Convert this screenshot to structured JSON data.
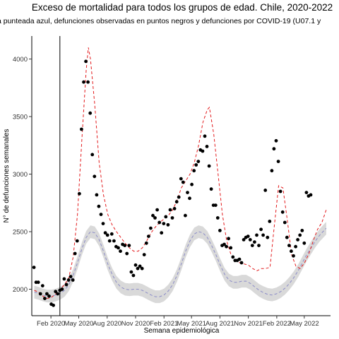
{
  "chart_data": {
    "type": "line",
    "title": "Exceso de mortalidad para todos los grupos de edad. Chile, 2020-2022",
    "subtitle": "a punteada azul, defunciones observadas en puntos negros y defunciones por COVID-19 (U07.1 y",
    "xlabel": "Semana epidemiológica",
    "ylabel": "N° de defunciones semanales",
    "xlim": [
      "2019-12-01",
      "2022-07-25"
    ],
    "ylim": [
      1770,
      4200
    ],
    "x_ticks": [
      {
        "date": "2020-02-01",
        "label": "Feb 2020"
      },
      {
        "date": "2020-05-01",
        "label": "May 2020"
      },
      {
        "date": "2020-08-01",
        "label": "Aug 2020"
      },
      {
        "date": "2020-11-01",
        "label": "Nov 2020"
      },
      {
        "date": "2021-02-01",
        "label": "Feb 2021"
      },
      {
        "date": "2021-05-01",
        "label": "May 2021"
      },
      {
        "date": "2021-08-01",
        "label": "Aug 2021"
      },
      {
        "date": "2021-11-01",
        "label": "Nov 2021"
      },
      {
        "date": "2022-02-01",
        "label": "Feb 2022"
      },
      {
        "date": "2022-05-01",
        "label": "May 2022"
      }
    ],
    "y_ticks": [
      2000,
      2500,
      3000,
      3500,
      4000
    ],
    "vertical_line_date": "2020-03-01",
    "grid": false,
    "series": [
      {
        "style": "dashed-red",
        "color": "#e31a1c",
        "points": [
          [
            "2019-12-09",
            1990
          ],
          [
            "2019-12-23",
            1975
          ],
          [
            "2020-01-06",
            1940
          ],
          [
            "2020-01-20",
            1920
          ],
          [
            "2020-02-03",
            1930
          ],
          [
            "2020-02-17",
            1960
          ],
          [
            "2020-03-02",
            2000
          ],
          [
            "2020-03-16",
            2040
          ],
          [
            "2020-03-30",
            2100
          ],
          [
            "2020-04-13",
            2280
          ],
          [
            "2020-04-27",
            2650
          ],
          [
            "2020-05-11",
            3300
          ],
          [
            "2020-05-25",
            3900
          ],
          [
            "2020-06-01",
            4100
          ],
          [
            "2020-06-08",
            4000
          ],
          [
            "2020-06-22",
            3600
          ],
          [
            "2020-07-06",
            3100
          ],
          [
            "2020-07-20",
            2820
          ],
          [
            "2020-08-03",
            2650
          ],
          [
            "2020-08-17",
            2560
          ],
          [
            "2020-08-31",
            2500
          ],
          [
            "2020-09-14",
            2450
          ],
          [
            "2020-09-28",
            2400
          ],
          [
            "2020-10-12",
            2360
          ],
          [
            "2020-10-26",
            2330
          ],
          [
            "2020-11-09",
            2330
          ],
          [
            "2020-11-23",
            2360
          ],
          [
            "2020-12-07",
            2420
          ],
          [
            "2020-12-21",
            2490
          ],
          [
            "2021-01-04",
            2540
          ],
          [
            "2021-01-18",
            2580
          ],
          [
            "2021-02-01",
            2610
          ],
          [
            "2021-02-15",
            2640
          ],
          [
            "2021-03-01",
            2690
          ],
          [
            "2021-03-15",
            2770
          ],
          [
            "2021-03-29",
            2880
          ],
          [
            "2021-04-12",
            2940
          ],
          [
            "2021-04-26",
            3000
          ],
          [
            "2021-05-10",
            3100
          ],
          [
            "2021-05-24",
            3250
          ],
          [
            "2021-06-07",
            3450
          ],
          [
            "2021-06-21",
            3560
          ],
          [
            "2021-06-28",
            3580
          ],
          [
            "2021-07-12",
            3350
          ],
          [
            "2021-07-26",
            3000
          ],
          [
            "2021-08-09",
            2650
          ],
          [
            "2021-08-23",
            2420
          ],
          [
            "2021-09-06",
            2300
          ],
          [
            "2021-09-20",
            2250
          ],
          [
            "2021-10-04",
            2230
          ],
          [
            "2021-10-18",
            2220
          ],
          [
            "2021-11-01",
            2210
          ],
          [
            "2021-11-15",
            2180
          ],
          [
            "2021-11-29",
            2160
          ],
          [
            "2021-12-13",
            2180
          ],
          [
            "2021-12-27",
            2180
          ],
          [
            "2022-01-10",
            2190
          ],
          [
            "2022-01-24",
            2550
          ],
          [
            "2022-02-07",
            2900
          ],
          [
            "2022-02-21",
            2880
          ],
          [
            "2022-03-07",
            2600
          ],
          [
            "2022-03-21",
            2300
          ],
          [
            "2022-04-04",
            2200
          ],
          [
            "2022-04-18",
            2180
          ],
          [
            "2022-05-02",
            2230
          ],
          [
            "2022-05-16",
            2310
          ],
          [
            "2022-05-30",
            2420
          ],
          [
            "2022-06-13",
            2520
          ],
          [
            "2022-06-27",
            2580
          ],
          [
            "2022-07-11",
            2690
          ]
        ]
      },
      {
        "style": "dashed-blue-with-band",
        "color": "#8c8cc8",
        "band_color": "#d9d9d9",
        "points": [
          [
            "2019-12-09",
            1975
          ],
          [
            "2019-12-23",
            1965
          ],
          [
            "2020-01-06",
            1950
          ],
          [
            "2020-01-20",
            1940
          ],
          [
            "2020-02-03",
            1940
          ],
          [
            "2020-02-17",
            1950
          ],
          [
            "2020-03-02",
            1965
          ],
          [
            "2020-03-16",
            1990
          ],
          [
            "2020-03-30",
            2040
          ],
          [
            "2020-04-13",
            2120
          ],
          [
            "2020-04-27",
            2230
          ],
          [
            "2020-05-11",
            2350
          ],
          [
            "2020-05-25",
            2450
          ],
          [
            "2020-06-08",
            2500
          ],
          [
            "2020-06-22",
            2490
          ],
          [
            "2020-07-06",
            2430
          ],
          [
            "2020-07-20",
            2330
          ],
          [
            "2020-08-03",
            2220
          ],
          [
            "2020-08-17",
            2130
          ],
          [
            "2020-08-31",
            2060
          ],
          [
            "2020-09-14",
            2020
          ],
          [
            "2020-09-28",
            2000
          ],
          [
            "2020-10-12",
            1995
          ],
          [
            "2020-10-26",
            2000
          ],
          [
            "2020-11-09",
            2000
          ],
          [
            "2020-11-23",
            1990
          ],
          [
            "2020-12-07",
            1970
          ],
          [
            "2020-12-21",
            1950
          ],
          [
            "2021-01-04",
            1935
          ],
          [
            "2021-01-18",
            1935
          ],
          [
            "2021-02-01",
            1950
          ],
          [
            "2021-02-15",
            1985
          ],
          [
            "2021-03-01",
            2040
          ],
          [
            "2021-03-15",
            2120
          ],
          [
            "2021-03-29",
            2220
          ],
          [
            "2021-04-12",
            2330
          ],
          [
            "2021-04-26",
            2420
          ],
          [
            "2021-05-10",
            2480
          ],
          [
            "2021-05-24",
            2500
          ],
          [
            "2021-06-07",
            2490
          ],
          [
            "2021-06-21",
            2450
          ],
          [
            "2021-07-05",
            2380
          ],
          [
            "2021-07-19",
            2300
          ],
          [
            "2021-08-02",
            2210
          ],
          [
            "2021-08-16",
            2130
          ],
          [
            "2021-08-30",
            2080
          ],
          [
            "2021-09-13",
            2060
          ],
          [
            "2021-09-27",
            2060
          ],
          [
            "2021-10-11",
            2070
          ],
          [
            "2021-10-25",
            2070
          ],
          [
            "2021-11-08",
            2050
          ],
          [
            "2021-11-22",
            2020
          ],
          [
            "2021-12-06",
            1990
          ],
          [
            "2021-12-20",
            1970
          ],
          [
            "2022-01-03",
            1955
          ],
          [
            "2022-01-17",
            1950
          ],
          [
            "2022-01-31",
            1960
          ],
          [
            "2022-02-14",
            1980
          ],
          [
            "2022-02-28",
            2010
          ],
          [
            "2022-03-14",
            2050
          ],
          [
            "2022-03-28",
            2100
          ],
          [
            "2022-04-11",
            2160
          ],
          [
            "2022-04-25",
            2230
          ],
          [
            "2022-05-09",
            2300
          ],
          [
            "2022-05-23",
            2360
          ],
          [
            "2022-06-06",
            2420
          ],
          [
            "2022-06-20",
            2470
          ],
          [
            "2022-07-04",
            2510
          ],
          [
            "2022-07-11",
            2530
          ]
        ],
        "band_half_width": 55
      },
      {
        "style": "points-black",
        "color": "#000000",
        "points": [
          [
            "2019-12-08",
            2190
          ],
          [
            "2019-12-15",
            2060
          ],
          [
            "2019-12-22",
            2060
          ],
          [
            "2019-12-29",
            1960
          ],
          [
            "2020-01-05",
            2030
          ],
          [
            "2020-01-12",
            1920
          ],
          [
            "2020-01-19",
            1960
          ],
          [
            "2020-01-26",
            1940
          ],
          [
            "2020-02-02",
            1870
          ],
          [
            "2020-02-09",
            1860
          ],
          [
            "2020-02-16",
            1980
          ],
          [
            "2020-02-23",
            1960
          ],
          [
            "2020-03-01",
            1990
          ],
          [
            "2020-03-08",
            2000
          ],
          [
            "2020-03-15",
            2090
          ],
          [
            "2020-03-22",
            2040
          ],
          [
            "2020-03-29",
            2080
          ],
          [
            "2020-04-05",
            2110
          ],
          [
            "2020-04-12",
            2080
          ],
          [
            "2020-04-19",
            2310
          ],
          [
            "2020-04-26",
            2420
          ],
          [
            "2020-05-03",
            2830
          ],
          [
            "2020-05-10",
            3390
          ],
          [
            "2020-05-17",
            3800
          ],
          [
            "2020-05-24",
            3980
          ],
          [
            "2020-05-31",
            3800
          ],
          [
            "2020-06-07",
            3530
          ],
          [
            "2020-06-14",
            3170
          ],
          [
            "2020-06-21",
            2980
          ],
          [
            "2020-06-28",
            2820
          ],
          [
            "2020-07-05",
            2720
          ],
          [
            "2020-07-12",
            2650
          ],
          [
            "2020-07-19",
            2570
          ],
          [
            "2020-07-26",
            2490
          ],
          [
            "2020-08-02",
            2470
          ],
          [
            "2020-08-09",
            2420
          ],
          [
            "2020-08-16",
            2480
          ],
          [
            "2020-08-23",
            2420
          ],
          [
            "2020-08-30",
            2370
          ],
          [
            "2020-09-06",
            2360
          ],
          [
            "2020-09-13",
            2330
          ],
          [
            "2020-09-20",
            2390
          ],
          [
            "2020-09-27",
            2380
          ],
          [
            "2020-10-04",
            2310
          ],
          [
            "2020-10-11",
            2380
          ],
          [
            "2020-10-18",
            2150
          ],
          [
            "2020-10-25",
            2120
          ],
          [
            "2020-11-01",
            2210
          ],
          [
            "2020-11-08",
            2180
          ],
          [
            "2020-11-15",
            2200
          ],
          [
            "2020-11-22",
            2180
          ],
          [
            "2020-11-29",
            2300
          ],
          [
            "2020-12-06",
            2400
          ],
          [
            "2020-12-13",
            2460
          ],
          [
            "2020-12-20",
            2530
          ],
          [
            "2020-12-27",
            2640
          ],
          [
            "2021-01-03",
            2620
          ],
          [
            "2021-01-10",
            2690
          ],
          [
            "2021-01-17",
            2580
          ],
          [
            "2021-01-24",
            2490
          ],
          [
            "2021-01-31",
            2570
          ],
          [
            "2021-02-07",
            2630
          ],
          [
            "2021-02-14",
            2560
          ],
          [
            "2021-02-21",
            2690
          ],
          [
            "2021-02-28",
            2620
          ],
          [
            "2021-03-07",
            2700
          ],
          [
            "2021-03-14",
            2760
          ],
          [
            "2021-03-21",
            2800
          ],
          [
            "2021-03-28",
            2960
          ],
          [
            "2021-04-04",
            2930
          ],
          [
            "2021-04-11",
            2640
          ],
          [
            "2021-04-18",
            2840
          ],
          [
            "2021-04-25",
            2790
          ],
          [
            "2021-05-02",
            2910
          ],
          [
            "2021-05-09",
            3030
          ],
          [
            "2021-05-16",
            3080
          ],
          [
            "2021-05-23",
            3110
          ],
          [
            "2021-05-30",
            3210
          ],
          [
            "2021-06-06",
            3200
          ],
          [
            "2021-06-13",
            3330
          ],
          [
            "2021-06-20",
            3240
          ],
          [
            "2021-06-27",
            3070
          ],
          [
            "2021-07-04",
            2870
          ],
          [
            "2021-07-11",
            2730
          ],
          [
            "2021-07-18",
            2730
          ],
          [
            "2021-07-25",
            2620
          ],
          [
            "2021-08-01",
            2510
          ],
          [
            "2021-08-08",
            2380
          ],
          [
            "2021-08-15",
            2390
          ],
          [
            "2021-08-22",
            2370
          ],
          [
            "2021-08-29",
            2440
          ],
          [
            "2021-09-05",
            2360
          ],
          [
            "2021-09-12",
            2280
          ],
          [
            "2021-09-19",
            2250
          ],
          [
            "2021-09-26",
            2250
          ],
          [
            "2021-10-03",
            2260
          ],
          [
            "2021-10-10",
            2230
          ],
          [
            "2021-10-17",
            2430
          ],
          [
            "2021-10-24",
            2450
          ],
          [
            "2021-10-31",
            2460
          ],
          [
            "2021-11-07",
            2430
          ],
          [
            "2021-11-14",
            2380
          ],
          [
            "2021-11-21",
            2410
          ],
          [
            "2021-11-28",
            2470
          ],
          [
            "2021-12-05",
            2380
          ],
          [
            "2021-12-12",
            2520
          ],
          [
            "2021-12-19",
            2470
          ],
          [
            "2021-12-26",
            2860
          ],
          [
            "2022-01-02",
            2450
          ],
          [
            "2022-01-09",
            2590
          ],
          [
            "2022-01-16",
            3030
          ],
          [
            "2022-01-23",
            3220
          ],
          [
            "2022-01-30",
            3290
          ],
          [
            "2022-02-06",
            3110
          ],
          [
            "2022-02-13",
            2850
          ],
          [
            "2022-02-20",
            2670
          ],
          [
            "2022-02-27",
            2580
          ],
          [
            "2022-03-06",
            2450
          ],
          [
            "2022-03-13",
            2380
          ],
          [
            "2022-03-20",
            2330
          ],
          [
            "2022-03-27",
            2290
          ],
          [
            "2022-04-03",
            2370
          ],
          [
            "2022-04-10",
            2430
          ],
          [
            "2022-04-17",
            2470
          ],
          [
            "2022-04-24",
            2510
          ],
          [
            "2022-05-01",
            2400
          ],
          [
            "2022-05-08",
            2840
          ],
          [
            "2022-05-15",
            2810
          ],
          [
            "2022-05-22",
            2820
          ]
        ]
      }
    ]
  }
}
